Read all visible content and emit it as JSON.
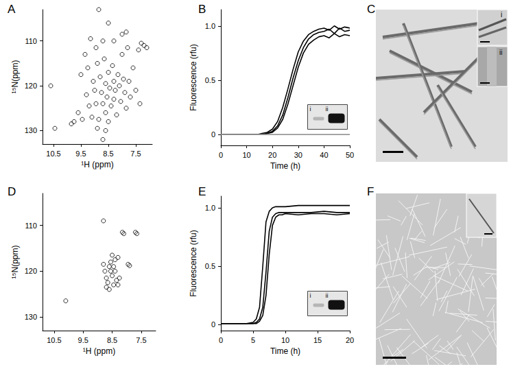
{
  "chart_data": [
    {
      "type": "scatter",
      "title": "A",
      "x_label": "¹H (ppm)",
      "y_label": "¹⁵N(ppm)",
      "color": "#000000",
      "marker": "ring",
      "x": [
        10.6,
        10.45,
        9.85,
        9.75,
        9.6,
        9.45,
        9.3,
        9.25,
        9.2,
        9.15,
        9.1,
        9.05,
        9.0,
        8.95,
        8.9,
        8.85,
        8.85,
        8.8,
        8.75,
        8.7,
        8.7,
        8.65,
        8.6,
        8.6,
        8.55,
        8.5,
        8.5,
        8.45,
        8.4,
        8.35,
        8.3,
        8.3,
        8.25,
        8.2,
        8.15,
        8.1,
        8.05,
        8.0,
        7.95,
        7.9,
        7.85,
        7.8,
        7.75,
        7.7,
        7.6,
        7.5,
        7.4,
        7.35,
        7.3,
        7.2,
        7.1,
        8.9,
        8.7,
        9.35,
        9.5,
        8.0,
        8.3,
        8.5,
        7.85,
        8.95,
        8.6
      ],
      "values": [
        120,
        129.5,
        128.5,
        128,
        126,
        127.5,
        122,
        116,
        124.5,
        109.5,
        127,
        119,
        121,
        124,
        115,
        103,
        127.5,
        118,
        121.5,
        110,
        124,
        114,
        119.5,
        126,
        122.5,
        117,
        128,
        120.5,
        124.5,
        115.5,
        119,
        123,
        121,
        126.5,
        117.5,
        120,
        123.5,
        113,
        118.5,
        121.5,
        125,
        111.5,
        119,
        122.5,
        116,
        121,
        112,
        124,
        110.5,
        111,
        111.5,
        129.5,
        132,
        113,
        117.5,
        108.5,
        110,
        106,
        108,
        111.5,
        130
      ],
      "xlim": [
        10.9,
        6.9
      ],
      "xticks": [
        10.5,
        9.5,
        8.5,
        7.5
      ],
      "ylim": [
        133,
        103
      ],
      "yticks": [
        110,
        120,
        130
      ]
    },
    {
      "type": "line",
      "title": "B",
      "x_label": "Time (h)",
      "y_label": "Fluorescence (rfu)",
      "marker": "none",
      "annotations": [
        "i",
        "ii"
      ],
      "x": [
        0,
        2,
        4,
        6,
        8,
        10,
        12,
        14,
        16,
        18,
        20,
        22,
        24,
        26,
        28,
        30,
        32,
        34,
        36,
        38,
        40,
        42,
        44,
        46,
        48,
        50
      ],
      "series": [
        {
          "color": "#000000",
          "values": [
            0,
            0,
            0,
            0,
            0,
            0,
            0,
            0,
            0.01,
            0.02,
            0.05,
            0.12,
            0.25,
            0.42,
            0.6,
            0.76,
            0.86,
            0.92,
            0.95,
            0.97,
            0.98,
            0.96,
            1.0,
            0.97,
            0.99,
            0.98
          ]
        },
        {
          "color": "#000000",
          "values": [
            0,
            0,
            0,
            0,
            0,
            0,
            0,
            0,
            0,
            0.01,
            0.03,
            0.08,
            0.18,
            0.34,
            0.52,
            0.68,
            0.8,
            0.88,
            0.92,
            0.94,
            0.95,
            0.97,
            0.93,
            0.98,
            0.95,
            0.96
          ]
        },
        {
          "color": "#000000",
          "values": [
            0,
            0,
            0,
            0,
            0,
            0,
            0,
            0,
            0,
            0.01,
            0.02,
            0.06,
            0.14,
            0.28,
            0.45,
            0.62,
            0.75,
            0.83,
            0.87,
            0.9,
            0.91,
            0.89,
            0.93,
            0.9,
            0.92,
            0.91
          ]
        },
        {
          "color": "#999999",
          "values": [
            0,
            0,
            0,
            0,
            0,
            0,
            0,
            0,
            0,
            0,
            0,
            0,
            0,
            0,
            0,
            0,
            0,
            0,
            0,
            0,
            0,
            0,
            0,
            0,
            0,
            0
          ]
        }
      ],
      "xlim": [
        0,
        50
      ],
      "xticks": [
        0,
        10,
        20,
        30,
        40,
        50
      ],
      "ylim": [
        -0.1,
        1.15
      ],
      "yticks": [
        0,
        0.5,
        {
          "value": 1,
          "label": "1.0"
        }
      ]
    },
    {
      "type": "scatter",
      "title": "D",
      "x_label": "¹H (ppm)",
      "y_label": "¹⁵N(ppm)",
      "color": "#000000",
      "marker": "ring",
      "x": [
        10.1,
        8.8,
        8.15,
        8.1,
        7.7,
        7.65,
        7.95,
        7.9,
        8.75,
        8.7,
        8.65,
        8.6,
        8.55,
        8.5,
        8.45,
        8.4,
        8.35,
        8.3,
        8.25,
        8.7,
        8.6,
        8.5,
        8.4,
        8.8,
        8.55,
        8.3,
        8.45
      ],
      "values": [
        126.5,
        109,
        111.5,
        111.8,
        111.5,
        111.8,
        118.5,
        118.8,
        120,
        121.5,
        122.5,
        119,
        118,
        121,
        123,
        120,
        122,
        117,
        121.5,
        123.5,
        124,
        116.5,
        117.5,
        118.5,
        120,
        123,
        119
      ],
      "xlim": [
        10.9,
        7.0
      ],
      "xticks": [
        10.5,
        9.5,
        8.5,
        7.5
      ],
      "ylim": [
        133,
        103
      ],
      "yticks": [
        110,
        120,
        130
      ]
    },
    {
      "type": "line",
      "title": "E",
      "x_label": "Time (h)",
      "y_label": "Fluorescence (rfu)",
      "marker": "none",
      "annotations": [
        "i",
        "ii"
      ],
      "x": [
        0,
        2,
        4,
        5,
        5.5,
        6,
        6.5,
        7,
        7.5,
        8,
        8.5,
        9,
        9.5,
        10,
        12,
        14,
        16,
        18,
        20
      ],
      "series": [
        {
          "color": "#000000",
          "values": [
            0.01,
            0.01,
            0.01,
            0.02,
            0.05,
            0.15,
            0.5,
            0.88,
            0.97,
            1.0,
            1.01,
            1.01,
            1.01,
            1.01,
            1.02,
            1.02,
            1.02,
            1.02,
            1.02
          ]
        },
        {
          "color": "#000000",
          "values": [
            0.01,
            0.01,
            0.01,
            0.01,
            0.02,
            0.05,
            0.15,
            0.45,
            0.8,
            0.92,
            0.95,
            0.96,
            0.96,
            0.96,
            0.96,
            0.96,
            0.97,
            0.96,
            0.96
          ]
        },
        {
          "color": "#000000",
          "values": [
            0.01,
            0.01,
            0.01,
            0.01,
            0.01,
            0.03,
            0.08,
            0.25,
            0.6,
            0.85,
            0.92,
            0.94,
            0.94,
            0.95,
            0.94,
            0.95,
            0.95,
            0.94,
            0.95
          ]
        }
      ],
      "xlim": [
        0,
        20
      ],
      "xticks": [
        0,
        5,
        10,
        15,
        20
      ],
      "ylim": [
        -0.05,
        1.1
      ],
      "yticks": [
        0,
        0.5,
        {
          "value": 1,
          "label": "1.0"
        }
      ]
    }
  ],
  "images": [
    {
      "title": "C",
      "insets": [
        "i",
        "ii"
      ]
    },
    {
      "title": "F"
    }
  ]
}
